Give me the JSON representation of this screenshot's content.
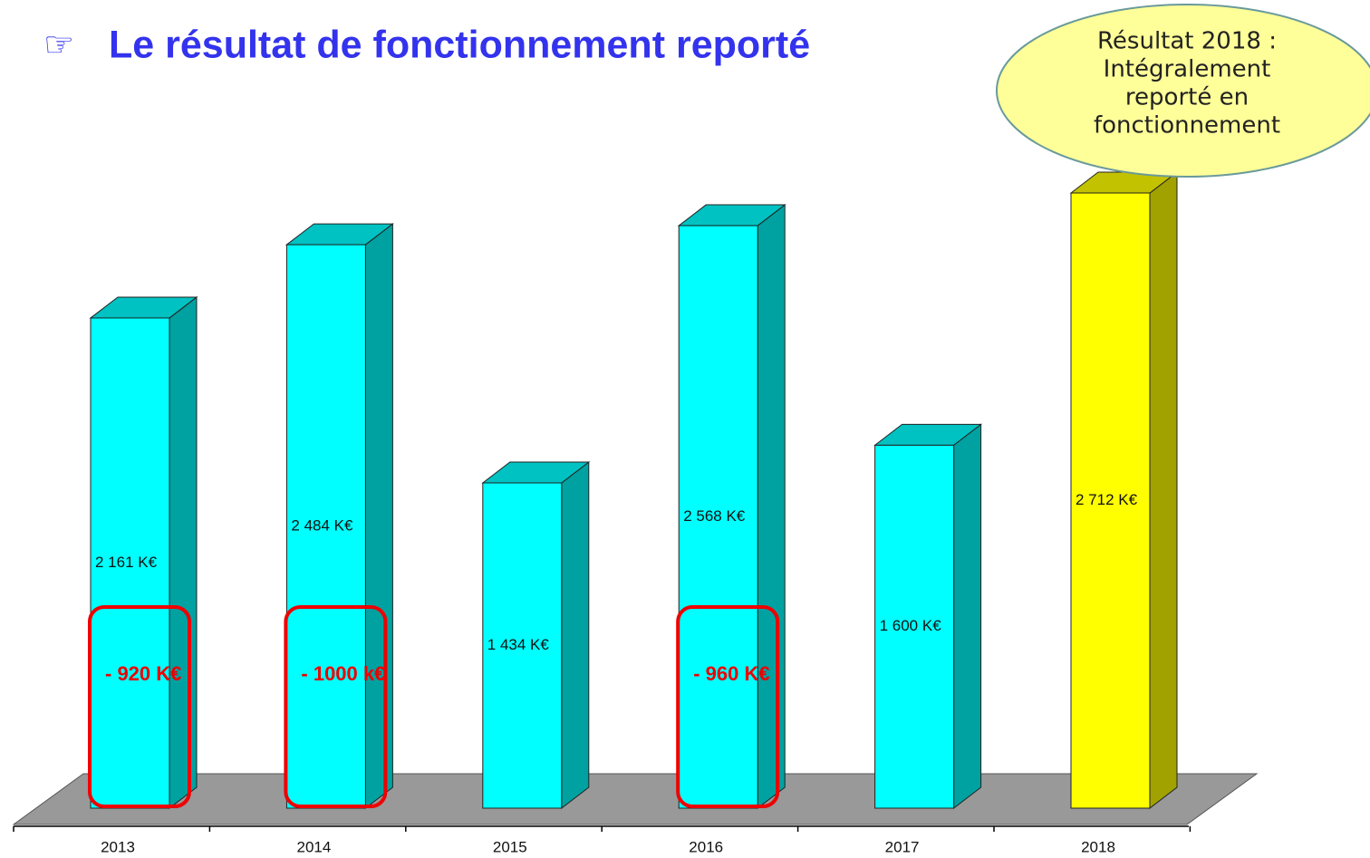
{
  "chart_data": {
    "type": "bar3d",
    "icon": "☞",
    "title": "Le résultat de fonctionnement reporté",
    "categories": [
      "2013",
      "2014",
      "2015",
      "2016",
      "2017",
      "2018"
    ],
    "values": [
      2161,
      2484,
      1434,
      2568,
      1600,
      2712
    ],
    "value_labels": [
      "2 161 K€",
      "2 484 K€",
      "1 434 K€",
      "2 568 K€",
      "1 600 K€",
      "2 712 K€"
    ],
    "colors": [
      "#00ffff",
      "#00ffff",
      "#00ffff",
      "#00ffff",
      "#00ffff",
      "#ffff00"
    ],
    "annotations": [
      {
        "category": "2013",
        "text": "- 920 K€"
      },
      {
        "category": "2014",
        "text": "- 1000 k€"
      },
      {
        "category": "2016",
        "text": "- 960 K€"
      }
    ],
    "callout": [
      "Résultat 2018 :",
      "Intégralement",
      "reporté en",
      "fonctionnement"
    ]
  }
}
